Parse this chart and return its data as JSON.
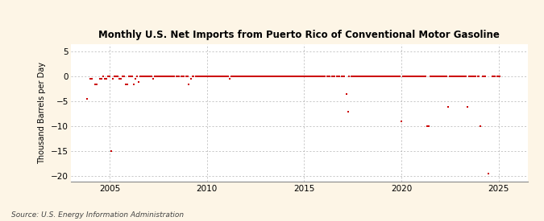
{
  "title": "Monthly U.S. Net Imports from Puerto Rico of Conventional Motor Gasoline",
  "ylabel": "Thousand Barrels per Day",
  "source": "Source: U.S. Energy Information Administration",
  "xlim": [
    2003.0,
    2026.5
  ],
  "ylim": [
    -21,
    6.5
  ],
  "yticks": [
    5,
    0,
    -5,
    -10,
    -15,
    -20
  ],
  "xticks": [
    2005,
    2010,
    2015,
    2020,
    2025
  ],
  "bg_color": "#fdf5e6",
  "plot_bg_color": "#ffffff",
  "marker_color": "#cc0000",
  "grid_color": "#b0b0b0",
  "data_points": [
    [
      2003.83,
      -4.5
    ],
    [
      2004.0,
      -0.5
    ],
    [
      2004.08,
      -0.5
    ],
    [
      2004.25,
      -1.5
    ],
    [
      2004.33,
      -1.5
    ],
    [
      2004.5,
      -0.5
    ],
    [
      2004.58,
      -0.5
    ],
    [
      2004.67,
      0.0
    ],
    [
      2004.75,
      -0.5
    ],
    [
      2004.83,
      -0.5
    ],
    [
      2004.92,
      0.0
    ],
    [
      2005.0,
      0.0
    ],
    [
      2005.08,
      -15.0
    ],
    [
      2005.17,
      -0.5
    ],
    [
      2005.25,
      0.0
    ],
    [
      2005.33,
      0.0
    ],
    [
      2005.42,
      0.0
    ],
    [
      2005.5,
      -0.5
    ],
    [
      2005.58,
      -0.5
    ],
    [
      2005.67,
      0.0
    ],
    [
      2005.75,
      0.0
    ],
    [
      2005.83,
      -1.5
    ],
    [
      2005.92,
      -1.5
    ],
    [
      2006.0,
      0.0
    ],
    [
      2006.08,
      0.0
    ],
    [
      2006.17,
      0.0
    ],
    [
      2006.25,
      -1.5
    ],
    [
      2006.33,
      -0.5
    ],
    [
      2006.42,
      0.0
    ],
    [
      2006.5,
      -1.0
    ],
    [
      2006.58,
      0.0
    ],
    [
      2006.67,
      0.0
    ],
    [
      2006.75,
      0.0
    ],
    [
      2006.83,
      0.0
    ],
    [
      2006.92,
      0.0
    ],
    [
      2007.0,
      0.0
    ],
    [
      2007.08,
      0.0
    ],
    [
      2007.17,
      0.0
    ],
    [
      2007.25,
      -0.5
    ],
    [
      2007.33,
      0.0
    ],
    [
      2007.42,
      0.0
    ],
    [
      2007.5,
      0.0
    ],
    [
      2007.58,
      0.0
    ],
    [
      2007.67,
      0.0
    ],
    [
      2007.75,
      0.0
    ],
    [
      2007.83,
      0.0
    ],
    [
      2007.92,
      0.0
    ],
    [
      2008.0,
      0.0
    ],
    [
      2008.08,
      0.0
    ],
    [
      2008.17,
      0.0
    ],
    [
      2008.25,
      0.0
    ],
    [
      2008.33,
      0.0
    ],
    [
      2008.42,
      0.0
    ],
    [
      2008.5,
      0.0
    ],
    [
      2008.58,
      0.0
    ],
    [
      2008.67,
      0.0
    ],
    [
      2008.75,
      0.0
    ],
    [
      2008.83,
      0.0
    ],
    [
      2008.92,
      0.0
    ],
    [
      2009.0,
      0.0
    ],
    [
      2009.08,
      -1.5
    ],
    [
      2009.17,
      -0.5
    ],
    [
      2009.25,
      0.0
    ],
    [
      2009.33,
      0.0
    ],
    [
      2009.42,
      0.0
    ],
    [
      2009.5,
      0.0
    ],
    [
      2009.58,
      0.0
    ],
    [
      2009.67,
      0.0
    ],
    [
      2009.75,
      0.0
    ],
    [
      2009.83,
      0.0
    ],
    [
      2009.92,
      0.0
    ],
    [
      2010.0,
      0.0
    ],
    [
      2010.08,
      0.0
    ],
    [
      2010.17,
      0.0
    ],
    [
      2010.25,
      0.0
    ],
    [
      2010.33,
      0.0
    ],
    [
      2010.42,
      0.0
    ],
    [
      2010.5,
      0.0
    ],
    [
      2010.58,
      0.0
    ],
    [
      2010.67,
      0.0
    ],
    [
      2010.75,
      0.0
    ],
    [
      2010.83,
      0.0
    ],
    [
      2010.92,
      0.0
    ],
    [
      2011.0,
      0.0
    ],
    [
      2011.08,
      0.0
    ],
    [
      2011.17,
      -0.5
    ],
    [
      2011.25,
      0.0
    ],
    [
      2011.33,
      0.0
    ],
    [
      2011.42,
      0.0
    ],
    [
      2011.5,
      0.0
    ],
    [
      2011.58,
      0.0
    ],
    [
      2011.67,
      0.0
    ],
    [
      2011.75,
      0.0
    ],
    [
      2011.83,
      0.0
    ],
    [
      2011.92,
      0.0
    ],
    [
      2012.0,
      0.0
    ],
    [
      2012.08,
      0.0
    ],
    [
      2012.17,
      0.0
    ],
    [
      2012.25,
      0.0
    ],
    [
      2012.33,
      0.0
    ],
    [
      2012.42,
      0.0
    ],
    [
      2012.5,
      0.0
    ],
    [
      2012.58,
      0.0
    ],
    [
      2012.67,
      0.0
    ],
    [
      2012.75,
      0.0
    ],
    [
      2012.83,
      0.0
    ],
    [
      2012.92,
      0.0
    ],
    [
      2013.0,
      0.0
    ],
    [
      2013.08,
      0.0
    ],
    [
      2013.17,
      0.0
    ],
    [
      2013.25,
      0.0
    ],
    [
      2013.33,
      0.0
    ],
    [
      2013.42,
      0.0
    ],
    [
      2013.5,
      0.0
    ],
    [
      2013.58,
      0.0
    ],
    [
      2013.67,
      0.0
    ],
    [
      2013.75,
      0.0
    ],
    [
      2013.83,
      0.0
    ],
    [
      2013.92,
      0.0
    ],
    [
      2014.0,
      0.0
    ],
    [
      2014.08,
      0.0
    ],
    [
      2014.17,
      0.0
    ],
    [
      2014.25,
      0.0
    ],
    [
      2014.33,
      0.0
    ],
    [
      2014.42,
      0.0
    ],
    [
      2014.5,
      0.0
    ],
    [
      2014.58,
      0.0
    ],
    [
      2014.67,
      0.0
    ],
    [
      2014.75,
      0.0
    ],
    [
      2014.83,
      0.0
    ],
    [
      2014.92,
      0.0
    ],
    [
      2015.0,
      0.0
    ],
    [
      2015.08,
      0.0
    ],
    [
      2015.17,
      0.0
    ],
    [
      2015.25,
      0.0
    ],
    [
      2015.33,
      0.0
    ],
    [
      2015.42,
      0.0
    ],
    [
      2015.5,
      0.0
    ],
    [
      2015.58,
      0.0
    ],
    [
      2015.67,
      0.0
    ],
    [
      2015.75,
      0.0
    ],
    [
      2015.83,
      0.0
    ],
    [
      2015.92,
      0.0
    ],
    [
      2016.0,
      0.0
    ],
    [
      2016.08,
      0.0
    ],
    [
      2016.17,
      0.0
    ],
    [
      2016.25,
      0.0
    ],
    [
      2016.33,
      0.0
    ],
    [
      2016.42,
      0.0
    ],
    [
      2016.5,
      0.0
    ],
    [
      2016.58,
      0.0
    ],
    [
      2016.67,
      0.0
    ],
    [
      2016.75,
      0.0
    ],
    [
      2016.83,
      0.0
    ],
    [
      2016.92,
      0.0
    ],
    [
      2017.0,
      0.0
    ],
    [
      2017.08,
      0.0
    ],
    [
      2017.17,
      -3.5
    ],
    [
      2017.25,
      -7.0
    ],
    [
      2017.33,
      0.0
    ],
    [
      2017.42,
      0.0
    ],
    [
      2017.5,
      0.0
    ],
    [
      2017.58,
      0.0
    ],
    [
      2017.67,
      0.0
    ],
    [
      2017.75,
      0.0
    ],
    [
      2017.83,
      0.0
    ],
    [
      2017.92,
      0.0
    ],
    [
      2018.0,
      0.0
    ],
    [
      2018.08,
      0.0
    ],
    [
      2018.17,
      0.0
    ],
    [
      2018.25,
      0.0
    ],
    [
      2018.33,
      0.0
    ],
    [
      2018.42,
      0.0
    ],
    [
      2018.5,
      0.0
    ],
    [
      2018.58,
      0.0
    ],
    [
      2018.67,
      0.0
    ],
    [
      2018.75,
      0.0
    ],
    [
      2018.83,
      0.0
    ],
    [
      2018.92,
      0.0
    ],
    [
      2019.0,
      0.0
    ],
    [
      2019.08,
      0.0
    ],
    [
      2019.17,
      0.0
    ],
    [
      2019.25,
      0.0
    ],
    [
      2019.33,
      0.0
    ],
    [
      2019.42,
      0.0
    ],
    [
      2019.5,
      0.0
    ],
    [
      2019.58,
      0.0
    ],
    [
      2019.67,
      0.0
    ],
    [
      2019.75,
      0.0
    ],
    [
      2019.83,
      0.0
    ],
    [
      2019.92,
      0.0
    ],
    [
      2020.0,
      -9.0
    ],
    [
      2020.08,
      0.0
    ],
    [
      2020.17,
      0.0
    ],
    [
      2020.25,
      0.0
    ],
    [
      2020.33,
      0.0
    ],
    [
      2020.42,
      0.0
    ],
    [
      2020.5,
      0.0
    ],
    [
      2020.58,
      0.0
    ],
    [
      2020.67,
      0.0
    ],
    [
      2020.75,
      0.0
    ],
    [
      2020.83,
      0.0
    ],
    [
      2020.92,
      0.0
    ],
    [
      2021.0,
      0.0
    ],
    [
      2021.08,
      0.0
    ],
    [
      2021.17,
      0.0
    ],
    [
      2021.25,
      0.0
    ],
    [
      2021.33,
      -10.0
    ],
    [
      2021.42,
      -10.0
    ],
    [
      2021.5,
      0.0
    ],
    [
      2021.58,
      0.0
    ],
    [
      2021.67,
      0.0
    ],
    [
      2021.75,
      0.0
    ],
    [
      2021.83,
      0.0
    ],
    [
      2021.92,
      0.0
    ],
    [
      2022.0,
      0.0
    ],
    [
      2022.08,
      0.0
    ],
    [
      2022.17,
      0.0
    ],
    [
      2022.25,
      0.0
    ],
    [
      2022.33,
      0.0
    ],
    [
      2022.42,
      -6.0
    ],
    [
      2022.5,
      0.0
    ],
    [
      2022.58,
      0.0
    ],
    [
      2022.67,
      0.0
    ],
    [
      2022.75,
      0.0
    ],
    [
      2022.83,
      0.0
    ],
    [
      2022.92,
      0.0
    ],
    [
      2023.0,
      0.0
    ],
    [
      2023.08,
      0.0
    ],
    [
      2023.17,
      0.0
    ],
    [
      2023.25,
      0.0
    ],
    [
      2023.33,
      0.0
    ],
    [
      2023.42,
      -6.0
    ],
    [
      2023.5,
      0.0
    ],
    [
      2023.58,
      0.0
    ],
    [
      2023.67,
      0.0
    ],
    [
      2023.75,
      0.0
    ],
    [
      2023.83,
      0.0
    ],
    [
      2023.92,
      0.0
    ],
    [
      2024.0,
      0.0
    ],
    [
      2024.08,
      -10.0
    ],
    [
      2024.17,
      0.0
    ],
    [
      2024.25,
      0.0
    ],
    [
      2024.33,
      0.0
    ],
    [
      2024.5,
      -19.5
    ],
    [
      2024.67,
      0.0
    ],
    [
      2024.75,
      0.0
    ],
    [
      2024.83,
      0.0
    ],
    [
      2024.92,
      0.0
    ],
    [
      2025.0,
      0.0
    ],
    [
      2025.08,
      0.0
    ]
  ]
}
